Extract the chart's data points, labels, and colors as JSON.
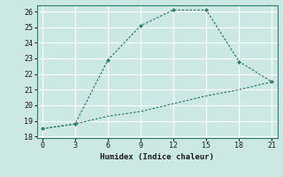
{
  "line1_x": [
    0,
    3,
    6,
    9,
    12,
    15,
    18,
    21
  ],
  "line1_y": [
    18.5,
    18.8,
    22.9,
    25.1,
    26.1,
    26.1,
    22.8,
    21.5
  ],
  "line2_x": [
    0,
    3,
    6,
    9,
    12,
    15,
    18,
    21
  ],
  "line2_y": [
    18.5,
    18.8,
    19.3,
    19.6,
    20.1,
    20.6,
    21.0,
    21.5
  ],
  "line_color": "#2e7d6e",
  "xlabel": "Humidex (Indice chaleur)",
  "xlim": [
    -0.5,
    21.5
  ],
  "ylim": [
    17.9,
    26.4
  ],
  "xticks": [
    0,
    3,
    6,
    9,
    12,
    15,
    18,
    21
  ],
  "yticks": [
    18,
    19,
    20,
    21,
    22,
    23,
    24,
    25,
    26
  ],
  "bg_color": "#cce8e4",
  "grid_color": "#ffffff"
}
